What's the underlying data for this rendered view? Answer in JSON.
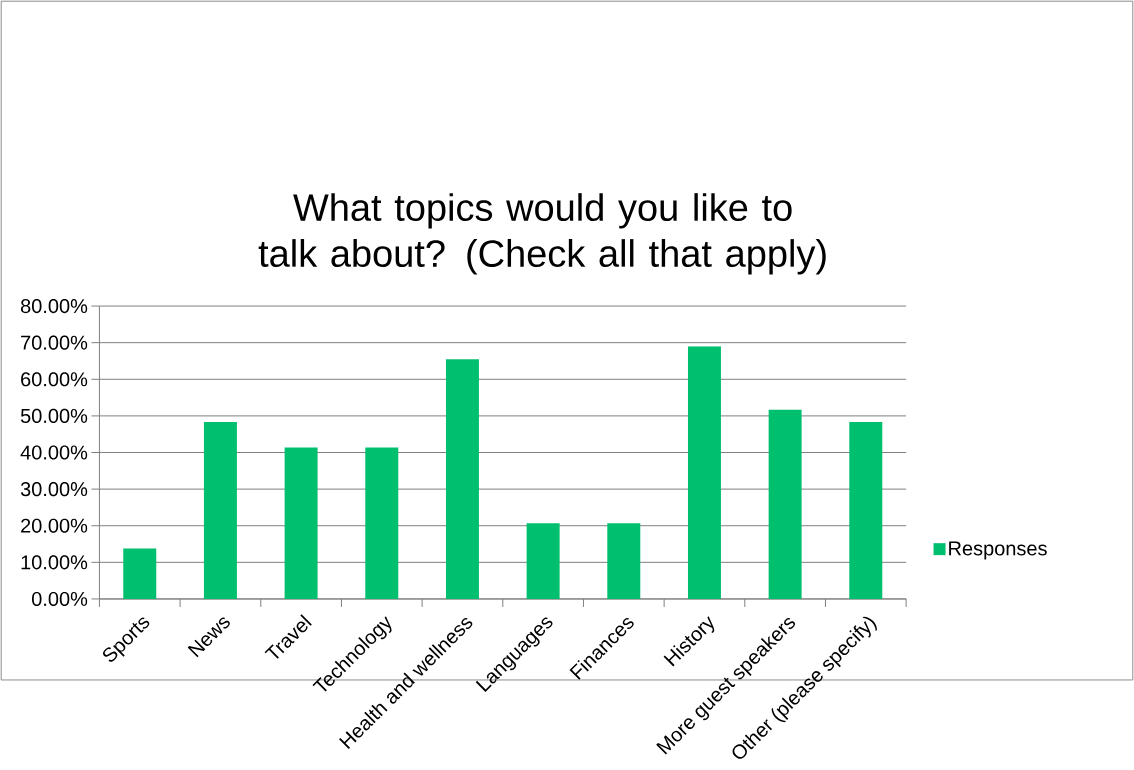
{
  "chart_data": {
    "type": "bar",
    "title": "What topics would you like to talk about? (Check all that apply)",
    "categories": [
      "Sports",
      "News",
      "Travel",
      "Technology",
      "Health and wellness",
      "Languages",
      "Finances",
      "History",
      "More guest speakers",
      "Other (please specify)"
    ],
    "series": [
      {
        "name": "Responses",
        "color": "#00c06f",
        "values": [
          13.8,
          48.3,
          41.4,
          41.4,
          65.5,
          20.7,
          20.7,
          69.0,
          51.7,
          48.3
        ]
      }
    ],
    "ylim": [
      0,
      80
    ],
    "yticks": [
      {
        "value": 0,
        "label": "0.00%"
      },
      {
        "value": 10,
        "label": "10.00%"
      },
      {
        "value": 20,
        "label": "20.00%"
      },
      {
        "value": 30,
        "label": "30.00%"
      },
      {
        "value": 40,
        "label": "40.00%"
      },
      {
        "value": 50,
        "label": "50.00%"
      },
      {
        "value": 60,
        "label": "60.00%"
      },
      {
        "value": 70,
        "label": "70.00%"
      },
      {
        "value": 80,
        "label": "80.00%"
      }
    ],
    "grid": "y",
    "legend": "right"
  }
}
